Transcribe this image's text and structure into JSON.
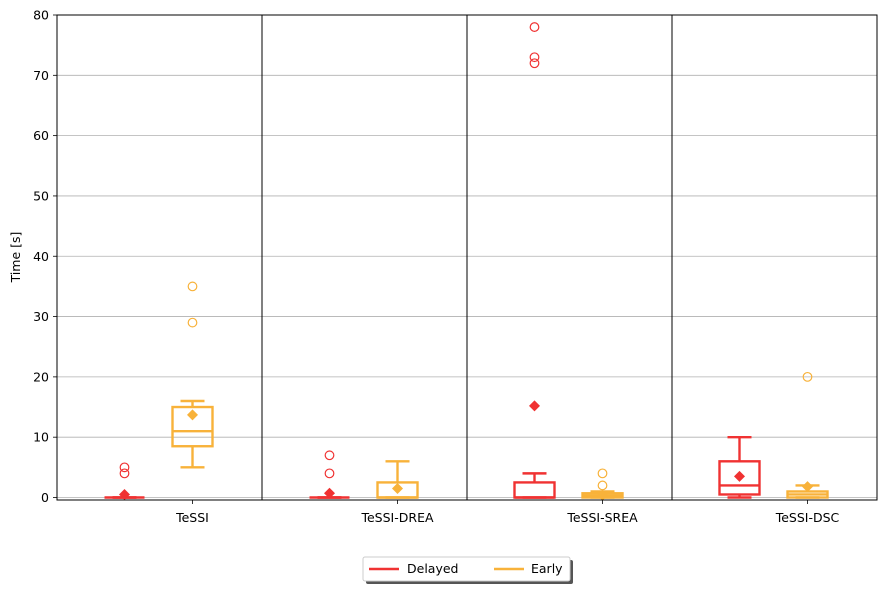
{
  "chart_data": {
    "type": "box",
    "ylabel": "Time [s]",
    "ylim": [
      0,
      80
    ],
    "yticks": [
      0,
      10,
      20,
      30,
      40,
      50,
      60,
      70,
      80
    ],
    "grid": "y",
    "categories": [
      "TeSSI",
      "TeSSI-DREA",
      "TeSSI-SREA",
      "TeSSI-DSC"
    ],
    "legend_position": "bottom-center",
    "colors": {
      "Delayed": "#f03232",
      "Early": "#f8b23a"
    },
    "series": [
      {
        "name": "Delayed",
        "boxes": [
          {
            "category": "TeSSI",
            "whislo": 0,
            "q1": 0,
            "median": 0,
            "q3": 0,
            "whishi": 0,
            "mean": 0.5,
            "fliers": [
              4,
              5
            ]
          },
          {
            "category": "TeSSI-DREA",
            "whislo": 0,
            "q1": 0,
            "median": 0,
            "q3": 0,
            "whishi": 0,
            "mean": 0.7,
            "fliers": [
              4,
              7
            ]
          },
          {
            "category": "TeSSI-SREA",
            "whislo": 0,
            "q1": 0,
            "median": 0,
            "q3": 2.5,
            "whishi": 4,
            "mean": 15.2,
            "fliers": [
              72,
              73,
              78
            ]
          },
          {
            "category": "TeSSI-DSC",
            "whislo": 0,
            "q1": 0.5,
            "median": 2,
            "q3": 6,
            "whishi": 10,
            "mean": 3.5,
            "fliers": []
          }
        ]
      },
      {
        "name": "Early",
        "boxes": [
          {
            "category": "TeSSI",
            "whislo": 5,
            "q1": 8.5,
            "median": 11,
            "q3": 15,
            "whishi": 16,
            "mean": 13.7,
            "fliers": [
              29,
              35
            ]
          },
          {
            "category": "TeSSI-DREA",
            "whislo": 0,
            "q1": 0,
            "median": 0,
            "q3": 2.5,
            "whishi": 6,
            "mean": 1.5,
            "fliers": []
          },
          {
            "category": "TeSSI-SREA",
            "whislo": 0,
            "q1": 0,
            "median": 0.3,
            "q3": 0.7,
            "whishi": 1,
            "mean": 0.4,
            "fliers": [
              2,
              4
            ]
          },
          {
            "category": "TeSSI-DSC",
            "whislo": 0,
            "q1": 0,
            "median": 0.5,
            "q3": 1,
            "whishi": 2,
            "mean": 1.8,
            "fliers": [
              20
            ]
          }
        ]
      }
    ]
  }
}
